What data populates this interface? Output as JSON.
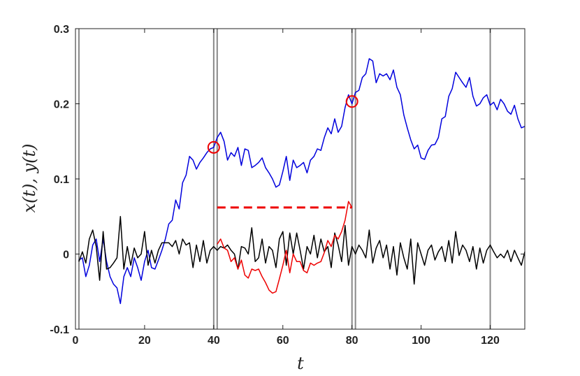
{
  "chart_data": {
    "type": "line",
    "xlabel": "t",
    "ylabel": "x(t), y(t)",
    "xlim": [
      0,
      130
    ],
    "ylim": [
      -0.1,
      0.3
    ],
    "xticks": [
      0,
      20,
      40,
      60,
      80,
      100,
      120
    ],
    "yticks": [
      -0.1,
      0,
      0.1,
      0.2,
      0.3
    ],
    "xtick_labels": [
      "0",
      "20",
      "40",
      "60",
      "80",
      "100",
      "120"
    ],
    "ytick_labels": [
      "-0.1",
      "0",
      "0.1",
      "0.2",
      "0.3"
    ],
    "grid": false,
    "vertical_lines": [
      1,
      40,
      41,
      80,
      81,
      120
    ],
    "colors": {
      "series_blue": "#0000dd",
      "series_black": "#000000",
      "series_red": "#ee0000",
      "vlines": "#888888",
      "markers": "#ee0000"
    },
    "series": [
      {
        "x": [
          1,
          2,
          3,
          4,
          5,
          6,
          7,
          8,
          9,
          10,
          11,
          12,
          13,
          14,
          15,
          16,
          17,
          18,
          19,
          20,
          21,
          22,
          23,
          24,
          25,
          26,
          27,
          28,
          29,
          30,
          31,
          32,
          33,
          34,
          35,
          36,
          37,
          38,
          39,
          40,
          41,
          42,
          43,
          44,
          45,
          46,
          47,
          48,
          49,
          50,
          51,
          52,
          53,
          54,
          55,
          56,
          57,
          58,
          59,
          60,
          61,
          62,
          63,
          64,
          65,
          66,
          67,
          68,
          69,
          70,
          71,
          72,
          73,
          74,
          75,
          76,
          77,
          78,
          79,
          80,
          81,
          82,
          83,
          84,
          85,
          86,
          87,
          88,
          89,
          90,
          91,
          92,
          93,
          94,
          95,
          96,
          97,
          98,
          99,
          100,
          101,
          102,
          103,
          104,
          105,
          106,
          107,
          108,
          109,
          110,
          111,
          112,
          113,
          114,
          115,
          116,
          117,
          118,
          119,
          120,
          121,
          122,
          123,
          124,
          125,
          126,
          127,
          128,
          129,
          130
        ],
        "y": [
          -0.008,
          -0.005,
          -0.03,
          -0.015,
          0.012,
          0.02,
          -0.01,
          0.02,
          -0.01,
          -0.03,
          -0.04,
          -0.045,
          -0.066,
          -0.03,
          -0.018,
          -0.03,
          -0.005,
          -0.018,
          -0.035,
          -0.01,
          0.005,
          -0.018,
          -0.02,
          -0.008,
          0.005,
          0.02,
          0.04,
          0.045,
          0.072,
          0.06,
          0.095,
          0.105,
          0.13,
          0.125,
          0.113,
          0.122,
          0.128,
          0.135,
          0.14,
          0.142,
          0.155,
          0.162,
          0.15,
          0.125,
          0.135,
          0.13,
          0.142,
          0.118,
          0.14,
          0.138,
          0.115,
          0.118,
          0.122,
          0.128,
          0.115,
          0.108,
          0.1,
          0.089,
          0.092,
          0.11,
          0.13,
          0.098,
          0.125,
          0.115,
          0.118,
          0.122,
          0.108,
          0.125,
          0.13,
          0.14,
          0.138,
          0.155,
          0.168,
          0.16,
          0.18,
          0.162,
          0.17,
          0.195,
          0.212,
          0.2,
          0.215,
          0.218,
          0.235,
          0.24,
          0.26,
          0.257,
          0.228,
          0.24,
          0.237,
          0.24,
          0.232,
          0.245,
          0.222,
          0.212,
          0.185,
          0.168,
          0.152,
          0.14,
          0.145,
          0.128,
          0.126,
          0.138,
          0.145,
          0.146,
          0.155,
          0.18,
          0.183,
          0.21,
          0.22,
          0.242,
          0.235,
          0.228,
          0.222,
          0.235,
          0.21,
          0.197,
          0.2,
          0.208,
          0.212,
          0.198,
          0.202,
          0.192,
          0.206,
          0.2,
          0.19,
          0.186,
          0.198,
          0.18,
          0.168,
          0.17
        ],
        "color": "#0000dd"
      },
      {
        "x": [
          1,
          2,
          3,
          4,
          5,
          6,
          7,
          8,
          9,
          10,
          11,
          12,
          13,
          14,
          15,
          16,
          17,
          18,
          19,
          20,
          21,
          22,
          23,
          24,
          25,
          26,
          27,
          28,
          29,
          30,
          31,
          32,
          33,
          34,
          35,
          36,
          37,
          38,
          39,
          40,
          41,
          42,
          43,
          44,
          45,
          46,
          47,
          48,
          49,
          50,
          51,
          52,
          53,
          54,
          55,
          56,
          57,
          58,
          59,
          60,
          61,
          62,
          63,
          64,
          65,
          66,
          67,
          68,
          69,
          70,
          71,
          72,
          73,
          74,
          75,
          76,
          77,
          78,
          79,
          80,
          81,
          82,
          83,
          84,
          85,
          86,
          87,
          88,
          89,
          90,
          91,
          92,
          93,
          94,
          95,
          96,
          97,
          98,
          99,
          100,
          101,
          102,
          103,
          104,
          105,
          106,
          107,
          108,
          109,
          110,
          111,
          112,
          113,
          114,
          115,
          116,
          117,
          118,
          119,
          120,
          121,
          122,
          123,
          124,
          125,
          126,
          127,
          128,
          129,
          130
        ],
        "y": [
          -0.01,
          0.003,
          -0.012,
          0.02,
          0.032,
          0.01,
          -0.035,
          0.03,
          -0.02,
          -0.018,
          -0.012,
          -0.005,
          0.05,
          -0.02,
          0.01,
          -0.015,
          0.008,
          -0.005,
          0.0,
          0.03,
          -0.015,
          0.005,
          -0.012,
          0.005,
          0.015,
          0.015,
          0.015,
          0.01,
          0.018,
          0.0,
          0.02,
          0.012,
          0.015,
          -0.018,
          0.012,
          -0.01,
          0.018,
          -0.012,
          0.005,
          0.01,
          0.005,
          0.01,
          0.008,
          0.012,
          0.005,
          0.0,
          -0.02,
          0.01,
          0.008,
          0.0,
          0.035,
          -0.01,
          -0.005,
          0.02,
          -0.012,
          0.01,
          0.005,
          -0.018,
          0.02,
          0.03,
          -0.015,
          0.028,
          0.0,
          0.028,
          0.005,
          -0.02,
          0.01,
          0.0,
          0.025,
          -0.005,
          0.02,
          0.003,
          0.01,
          -0.018,
          0.028,
          0.012,
          -0.01,
          0.038,
          -0.015,
          0.01,
          0.0,
          0.012,
          0.005,
          -0.005,
          0.032,
          -0.012,
          0.008,
          0.018,
          -0.005,
          0.012,
          -0.02,
          0.01,
          -0.028,
          0.015,
          -0.005,
          -0.02,
          0.02,
          -0.04,
          0.015,
          0.0,
          -0.015,
          0.005,
          0.012,
          -0.008,
          0.003,
          0.01,
          -0.01,
          0.018,
          -0.012,
          0.03,
          -0.002,
          0.012,
          0.005,
          -0.01,
          0.01,
          -0.02,
          0.008,
          -0.012,
          0.005,
          0.012,
          0.003,
          -0.005,
          0.0,
          -0.005,
          0.005,
          -0.01,
          0.005,
          -0.005,
          -0.015,
          0.003
        ],
        "color": "#000000"
      },
      {
        "x": [
          41,
          42,
          43,
          44,
          45,
          46,
          47,
          48,
          49,
          50,
          51,
          52,
          53,
          54,
          55,
          56,
          57,
          58,
          59,
          60,
          61,
          62,
          63,
          64,
          65,
          66,
          67,
          68,
          69,
          70,
          71,
          72,
          73,
          74,
          75,
          76,
          77,
          78,
          79,
          80
        ],
        "y": [
          0.013,
          0.02,
          0.008,
          0.005,
          -0.01,
          -0.005,
          -0.02,
          -0.008,
          -0.028,
          -0.032,
          -0.02,
          -0.022,
          -0.02,
          -0.03,
          -0.038,
          -0.048,
          -0.052,
          -0.05,
          -0.033,
          -0.015,
          0.005,
          -0.025,
          0.0,
          -0.01,
          -0.01,
          -0.022,
          -0.025,
          -0.012,
          -0.015,
          -0.012,
          -0.01,
          0.002,
          0.018,
          0.01,
          0.025,
          0.02,
          0.03,
          0.045,
          0.07,
          0.062
        ],
        "color": "#ee0000"
      },
      {
        "x": [
          41,
          80
        ],
        "y": [
          0.062,
          0.062
        ],
        "color": "#ee0000",
        "dashed": true
      }
    ],
    "markers": [
      {
        "x": 40,
        "y": 0.142
      },
      {
        "x": 80,
        "y": 0.203
      }
    ]
  }
}
